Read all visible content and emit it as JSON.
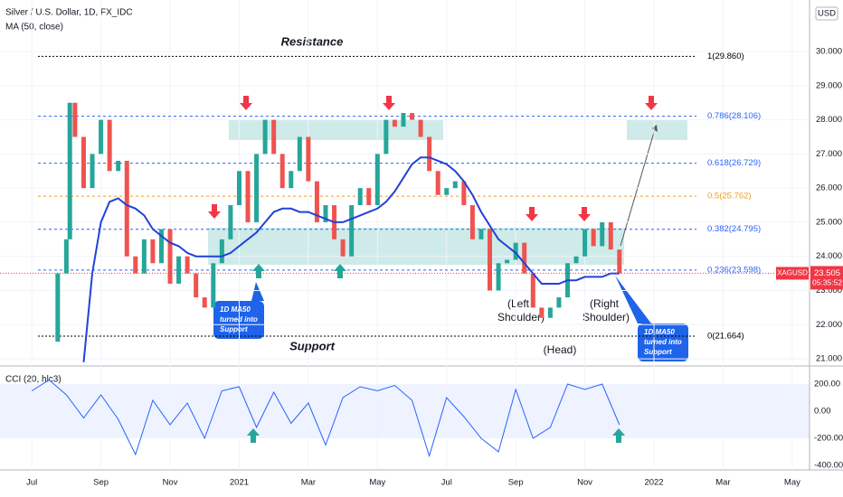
{
  "header": {
    "title": "Silver / U.S. Dollar, 1D, FX_IDC",
    "currency": "USD",
    "symbol": "XAGUSD",
    "last_value": 23.505,
    "countdown": "05:35:52"
  },
  "chart_data": [
    {
      "type": "candle",
      "xlim": [
        -0.92,
        22.5
      ],
      "ylim": [
        20.79,
        31.51
      ],
      "xticks": [
        {
          "value": 0,
          "label": "Jul"
        },
        {
          "value": 2,
          "label": "Sep"
        },
        {
          "value": 4,
          "label": "Nov"
        },
        {
          "value": 6,
          "label": "2021"
        },
        {
          "value": 8,
          "label": "Mar"
        },
        {
          "value": 10,
          "label": "May"
        },
        {
          "value": 12,
          "label": "Jul"
        },
        {
          "value": 14,
          "label": "Sep"
        },
        {
          "value": 16,
          "label": "Nov"
        },
        {
          "value": 18,
          "label": "2022"
        },
        {
          "value": 20,
          "label": "Mar"
        },
        {
          "value": 22,
          "label": "May"
        }
      ],
      "yticks": [
        {
          "value": 21,
          "label": "21.000"
        },
        {
          "value": 22,
          "label": "22.000"
        },
        {
          "value": 23,
          "label": "23.000"
        },
        {
          "value": 24,
          "label": "24.000"
        },
        {
          "value": 25,
          "label": "25.000"
        },
        {
          "value": 26,
          "label": "26.000"
        },
        {
          "value": 27,
          "label": "27.000"
        },
        {
          "value": 28,
          "label": "28.000"
        },
        {
          "value": 29,
          "label": "29.000"
        },
        {
          "value": 30,
          "label": "30.000"
        }
      ],
      "x": [
        0.5,
        0.75,
        1,
        1.1,
        1.25,
        1.5,
        1.75,
        2,
        2.25,
        2.5,
        2.75,
        3,
        3.25,
        3.5,
        3.75,
        4,
        4.25,
        4.5,
        4.75,
        5,
        5.25,
        5.5,
        5.75,
        6,
        6.25,
        6.5,
        6.75,
        7,
        7.25,
        7.5,
        7.75,
        8,
        8.25,
        8.5,
        8.75,
        9,
        9.25,
        9.5,
        9.75,
        10,
        10.25,
        10.5,
        10.75,
        11,
        11.25,
        11.5,
        11.75,
        12,
        12.25,
        12.5,
        12.75,
        13,
        13.25,
        13.5,
        13.75,
        14,
        14.25,
        14.5,
        14.75,
        15,
        15.25,
        15.5,
        15.75,
        16,
        16.25,
        16.5,
        16.75,
        17
      ],
      "series": [
        {
          "name": "XAGUSD",
          "up_color": "#26a69a",
          "down_color": "#ef5350",
          "values": [
            21.5,
            23.5,
            24.5,
            28.5,
            27.5,
            26,
            27,
            28,
            26.5,
            26.8,
            24,
            23.5,
            24.5,
            23.8,
            24.8,
            23.2,
            24,
            23.5,
            22.8,
            22.5,
            23.8,
            24.5,
            25.5,
            26.5,
            25,
            27,
            28,
            27,
            26,
            26.5,
            27.5,
            26.2,
            25,
            25.5,
            24.5,
            24,
            25.5,
            26,
            25.5,
            27,
            28,
            27.8,
            28.2,
            28,
            27.5,
            26.5,
            25.8,
            26,
            26.2,
            25.5,
            24.5,
            24.8,
            23,
            23.8,
            23.9,
            24.4,
            23.5,
            22.5,
            22.2,
            22.5,
            22.8,
            23.8,
            24,
            24.8,
            24.3,
            25,
            24.2,
            23.505
          ]
        },
        {
          "name": "MA (50, close)",
          "color": "#2142d6",
          "values": [
            null,
            null,
            null,
            null,
            null,
            20.9,
            23.5,
            25,
            25.6,
            25.7,
            25.5,
            25.4,
            25.2,
            24.8,
            24.6,
            24.4,
            24.3,
            24.1,
            24,
            24,
            24,
            24,
            24.1,
            24.3,
            24.5,
            24.7,
            25,
            25.3,
            25.4,
            25.4,
            25.3,
            25.3,
            25.2,
            25.1,
            25,
            25,
            25.1,
            25.2,
            25.3,
            25.4,
            25.6,
            25.9,
            26.3,
            26.7,
            26.9,
            26.9,
            26.8,
            26.7,
            26.5,
            26.2,
            25.8,
            25.3,
            24.9,
            24.5,
            24.3,
            24.1,
            23.8,
            23.5,
            23.2,
            23.2,
            23.2,
            23.3,
            23.3,
            23.4,
            23.4,
            23.4,
            23.5,
            23.5
          ]
        }
      ],
      "levels": [
        {
          "label": "1(29.860)",
          "value": 29.86,
          "color": "#000000"
        },
        {
          "label": "0.786(28.106)",
          "value": 28.106,
          "color": "#2962ff"
        },
        {
          "label": "0.618(26.729)",
          "value": 26.729,
          "color": "#2962ff"
        },
        {
          "label": "0.5(25.762)",
          "value": 25.762,
          "color": "#f59d1b"
        },
        {
          "label": "0.382(24.795)",
          "value": 24.795,
          "color": "#2962ff"
        },
        {
          "label": "0.236(23.598)",
          "value": 23.598,
          "color": "#2962ff"
        },
        {
          "label": "0(21.664)",
          "value": 21.664,
          "color": "#000000"
        }
      ],
      "annotations": {
        "resistance": "Resistance",
        "support": "Support",
        "left": "(Left",
        "left2": "Shoulder)",
        "head": "(Head)",
        "right": "(Right",
        "right2": "Shoulder)",
        "call1": [
          "1D MA50",
          "turned into",
          "Support"
        ],
        "call2": [
          "1D MA50",
          "turned into",
          "Support"
        ]
      }
    },
    {
      "type": "line",
      "title": "CCI (20, hlc3)",
      "color": "#2962ff",
      "ylim": [
        -433.3,
        333.3
      ],
      "yticks": [
        {
          "value": 200,
          "label": "200.00"
        },
        {
          "value": 0,
          "label": "0.00"
        },
        {
          "value": -200,
          "label": "-200.00"
        },
        {
          "value": -400,
          "label": "-400.00"
        }
      ],
      "x": [
        0,
        0.5,
        1,
        1.5,
        2,
        2.5,
        3,
        3.5,
        4,
        4.5,
        5,
        5.5,
        6,
        6.5,
        7,
        7.5,
        8,
        8.5,
        9,
        9.5,
        10,
        10.5,
        11,
        11.5,
        12,
        12.5,
        13,
        13.5,
        14,
        14.5,
        15,
        15.5,
        16,
        16.5,
        17
      ],
      "values": [
        150,
        230,
        120,
        -50,
        120,
        -60,
        -320,
        80,
        -100,
        60,
        -200,
        150,
        180,
        -120,
        140,
        -90,
        60,
        -250,
        100,
        180,
        150,
        190,
        80,
        -330,
        100,
        -40,
        -200,
        -300,
        160,
        -200,
        -120,
        200,
        160,
        200,
        -100
      ]
    }
  ]
}
